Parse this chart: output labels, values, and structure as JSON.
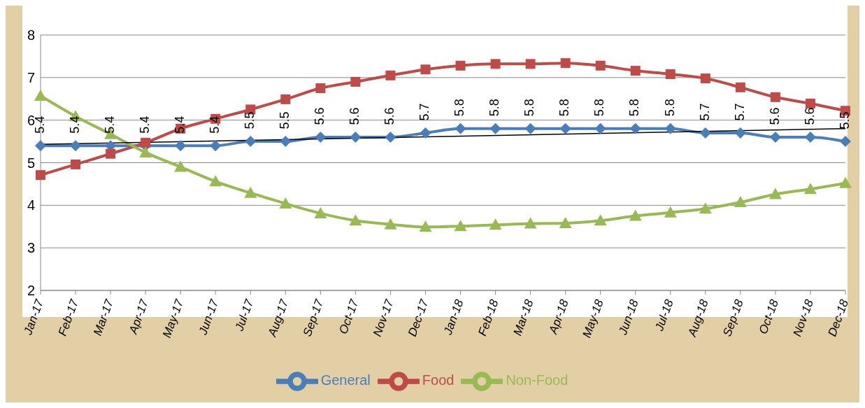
{
  "chart_data": {
    "type": "line",
    "categories": [
      "Jan-17",
      "Feb-17",
      "Mar-17",
      "Apr-17",
      "May-17",
      "Jun-17",
      "Jul-17",
      "Aug-17",
      "Sep-17",
      "Oct-17",
      "Nov-17",
      "Dec-17",
      "Jan-18",
      "Feb-18",
      "Mar-18",
      "Apr-18",
      "May-18",
      "Jun-18",
      "Jul-18",
      "Aug-18",
      "Sep-18",
      "Oct-18",
      "Nov-18",
      "Dec-18"
    ],
    "series": [
      {
        "name": "General",
        "color": "#4a7ebb",
        "marker": "diamond",
        "data_labels": true,
        "values": [
          5.4,
          5.4,
          5.4,
          5.4,
          5.4,
          5.4,
          5.5,
          5.5,
          5.6,
          5.6,
          5.6,
          5.7,
          5.8,
          5.8,
          5.8,
          5.8,
          5.8,
          5.8,
          5.8,
          5.7,
          5.7,
          5.6,
          5.6,
          5.5
        ]
      },
      {
        "name": "Food",
        "color": "#be4b48",
        "marker": "square",
        "values": [
          4.71,
          4.96,
          5.21,
          5.47,
          5.8,
          6.03,
          6.25,
          6.49,
          6.75,
          6.9,
          7.05,
          7.19,
          7.28,
          7.32,
          7.32,
          7.34,
          7.28,
          7.16,
          7.08,
          6.98,
          6.77,
          6.54,
          6.39,
          6.22
        ]
      },
      {
        "name": "Non-Food",
        "color": "#98b954",
        "marker": "triangle",
        "values": [
          6.57,
          6.09,
          5.67,
          5.24,
          4.9,
          4.56,
          4.29,
          4.04,
          3.81,
          3.64,
          3.55,
          3.49,
          3.51,
          3.54,
          3.57,
          3.58,
          3.64,
          3.75,
          3.83,
          3.92,
          4.07,
          4.26,
          4.38,
          4.52
        ]
      },
      {
        "type": "line",
        "color": "#000000",
        "marker": "none",
        "x": [
          "Jan-17",
          "Dec-18"
        ],
        "values": [
          5.43,
          5.8
        ]
      }
    ],
    "ylim": [
      2,
      8
    ],
    "yticks": [
      2,
      3,
      4,
      5,
      6,
      7,
      8
    ],
    "grid": "y",
    "legend": "bottom"
  }
}
